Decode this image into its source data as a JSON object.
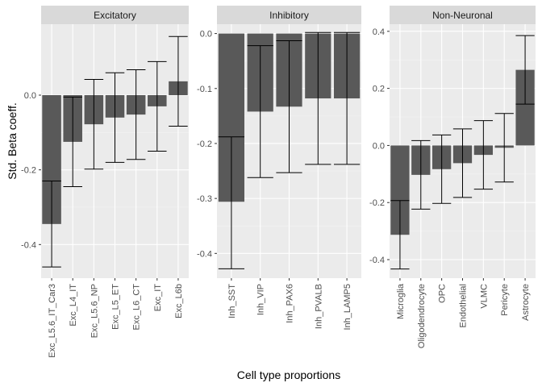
{
  "chart_data": {
    "type": "bar",
    "xlabel": "Cell type proportions",
    "ylabel": "Std. Beta coeff.",
    "colors": {
      "panel_bg": "#ebebeb",
      "grid_major": "#ffffff",
      "grid_minor": "#f4f4f4",
      "strip_bg": "#d9d9d9",
      "bar": "#595959",
      "errorbar": "#000000"
    },
    "panels": [
      {
        "title": "Excitatory",
        "ylim": [
          -0.49,
          0.19
        ],
        "yticks": [
          -0.4,
          -0.2,
          0.0
        ],
        "ytick_labels": [
          "-0.4",
          "-0.2",
          "0.0"
        ],
        "categories": [
          "Exc_L5.6_IT_Car3",
          "Exc_L4_IT",
          "Exc_L5.6_NP",
          "Exc_L5_ET",
          "Exc_L6_CT",
          "Exc_IT",
          "Exc_L6b"
        ],
        "values": [
          -0.345,
          -0.125,
          -0.078,
          -0.06,
          -0.052,
          -0.03,
          0.037
        ],
        "lower": [
          -0.46,
          -0.245,
          -0.198,
          -0.18,
          -0.172,
          -0.15,
          -0.083
        ],
        "upper": [
          -0.23,
          -0.005,
          0.042,
          0.06,
          0.068,
          0.09,
          0.157
        ]
      },
      {
        "title": "Inhibitory",
        "ylim": [
          -0.445,
          0.017
        ],
        "yticks": [
          -0.4,
          -0.3,
          -0.2,
          -0.1,
          0.0
        ],
        "ytick_labels": [
          "-0.4",
          "-0.3",
          "-0.2",
          "-0.1",
          "0.0"
        ],
        "categories": [
          "Inh_SST",
          "Inh_VIP",
          "Inh_PAX6",
          "Inh_PVALB",
          "Inh_LAMP5"
        ],
        "values": [
          -0.306,
          -0.142,
          -0.133,
          -0.118,
          -0.118
        ],
        "lower": [
          -0.428,
          -0.262,
          -0.253,
          -0.238,
          -0.238
        ],
        "upper": [
          -0.188,
          -0.022,
          -0.013,
          0.002,
          0.002
        ]
      },
      {
        "title": "Non-Neuronal",
        "ylim": [
          -0.465,
          0.425
        ],
        "yticks": [
          -0.4,
          -0.2,
          0.0,
          0.2,
          0.4
        ],
        "ytick_labels": [
          "-0.4",
          "-0.2",
          "0.0",
          "0.2",
          "0.4"
        ],
        "categories": [
          "Microglia",
          "Oligodendrocyte",
          "OPC",
          "Endothelial",
          "VLMC",
          "Pericyte",
          "Astrocyte"
        ],
        "values": [
          -0.313,
          -0.103,
          -0.083,
          -0.062,
          -0.033,
          -0.008,
          0.265
        ],
        "lower": [
          -0.433,
          -0.223,
          -0.203,
          -0.182,
          -0.153,
          -0.128,
          0.145
        ],
        "upper": [
          -0.193,
          0.017,
          0.037,
          0.058,
          0.087,
          0.112,
          0.385
        ]
      }
    ]
  }
}
